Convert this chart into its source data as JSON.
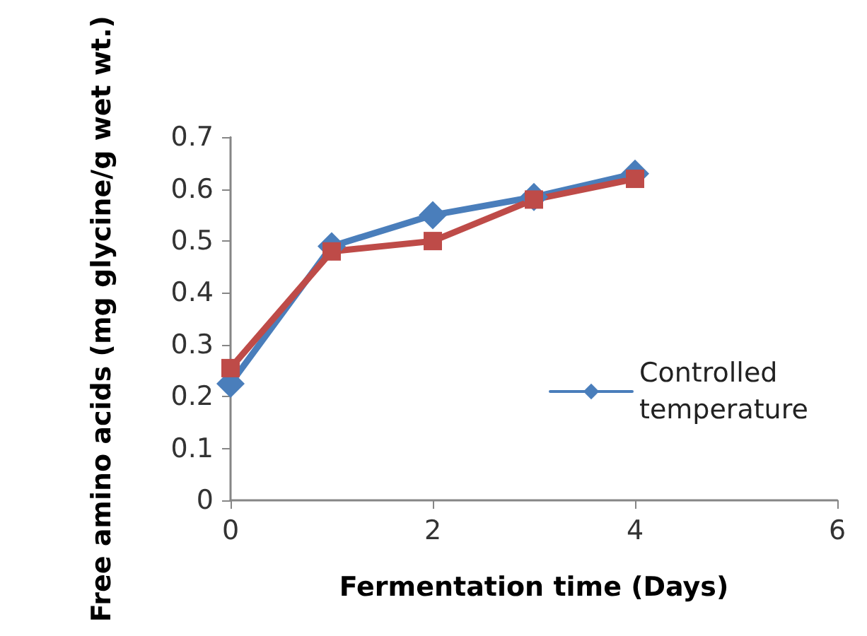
{
  "chart_data": {
    "type": "line",
    "xlabel": "Fermentation time (Days)",
    "ylabel": "Free amino acids (mg glycine/g wet wt.)",
    "x": [
      0,
      1,
      2,
      3,
      4
    ],
    "xlim": [
      0,
      6
    ],
    "xticks": [
      0,
      2,
      4,
      6
    ],
    "ylim": [
      0,
      0.7
    ],
    "yticks": [
      0,
      0.1,
      0.2,
      0.3,
      0.4,
      0.5,
      0.6,
      0.7
    ],
    "series": [
      {
        "name": "Controlled temperature",
        "color": "#4a7ebb",
        "marker": "diamond",
        "values": [
          0.225,
          0.49,
          0.55,
          0.585,
          0.63
        ]
      },
      {
        "color": "#be4b48",
        "marker": "square",
        "values": [
          0.255,
          0.48,
          0.5,
          0.58,
          0.62
        ]
      }
    ],
    "grid": false,
    "legend": "right",
    "line_style": "solid"
  }
}
